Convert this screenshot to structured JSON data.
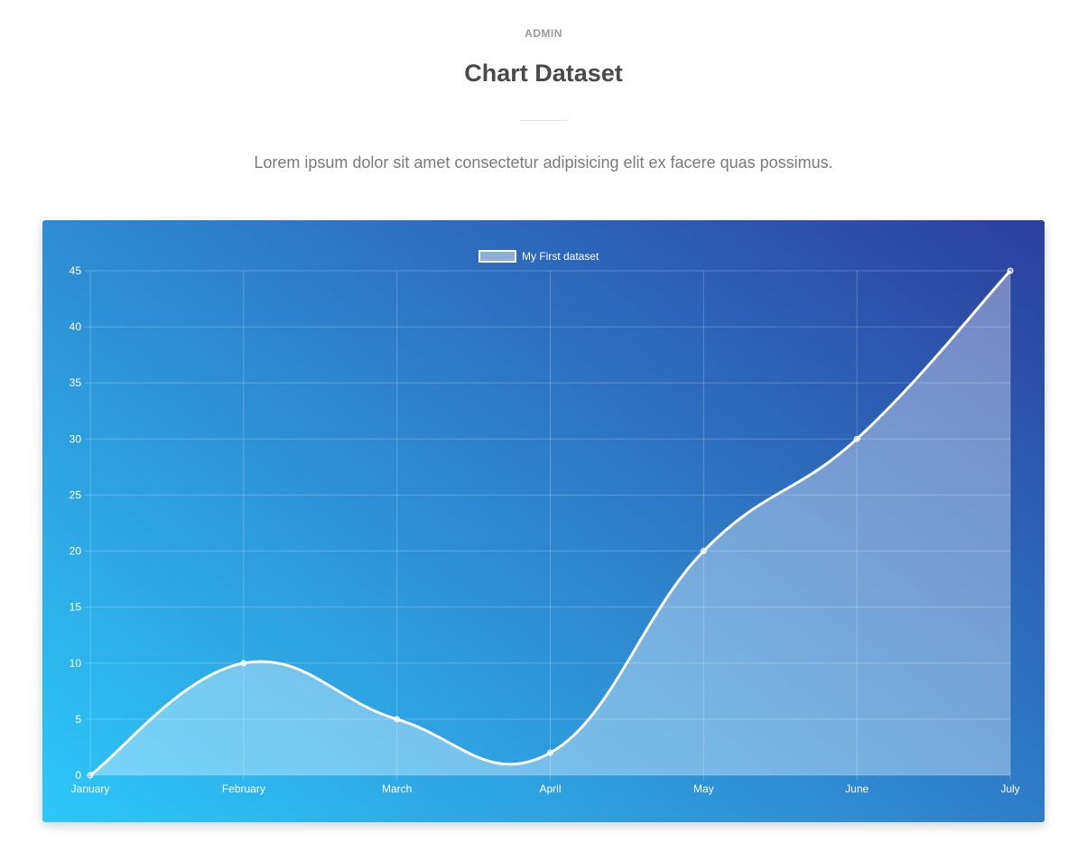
{
  "header": {
    "eyebrow": "ADMIN",
    "title": "Chart Dataset",
    "lead": "Lorem ipsum dolor sit amet consectetur adipisicing elit ex facere quas possimus."
  },
  "colors": {
    "gradient_start": "#2dc8fa",
    "gradient_mid": "#2e8cd2",
    "gradient_end": "#2c3e9e",
    "line": "#ffffff"
  },
  "chart_data": {
    "type": "area",
    "categories": [
      "January",
      "February",
      "March",
      "April",
      "May",
      "June",
      "July"
    ],
    "series": [
      {
        "name": "My First dataset",
        "values": [
          0,
          10,
          5,
          2,
          20,
          30,
          45
        ]
      }
    ],
    "ylim": [
      0,
      45
    ],
    "yticks": [
      0,
      5,
      10,
      15,
      20,
      25,
      30,
      35,
      40,
      45
    ],
    "grid": true,
    "legend_position": "top-center"
  }
}
